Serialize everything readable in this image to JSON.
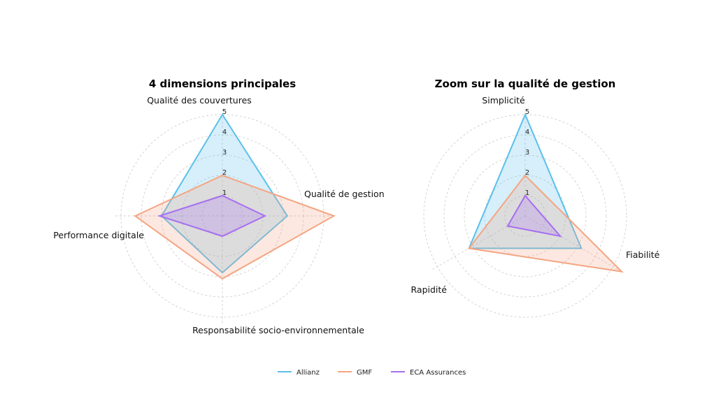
{
  "chart_data": [
    {
      "type": "radar",
      "title": "4 dimensions principales",
      "axes": [
        "Qualité des couvertures",
        "Qualité de gestion",
        "Responsabilité socio-environnementale",
        "Performance digitale"
      ],
      "r_ticks": [
        "1",
        "2",
        "3",
        "4",
        "5"
      ],
      "r_range": [
        0,
        5
      ],
      "series": [
        {
          "name": "Allianz",
          "values": [
            5.0,
            3.2,
            2.8,
            3.0
          ]
        },
        {
          "name": "GMF",
          "values": [
            2.0,
            5.5,
            3.1,
            4.3
          ]
        },
        {
          "name": "ECA Assurances",
          "values": [
            1.0,
            2.1,
            1.0,
            3.1
          ]
        }
      ],
      "grid": true
    },
    {
      "type": "radar",
      "title": "Zoom sur la qualité de gestion",
      "axes": [
        "Simplicité",
        "Fiabilité",
        "Rapidité"
      ],
      "r_ticks": [
        "1",
        "2",
        "3",
        "4",
        "5"
      ],
      "r_range": [
        0,
        5
      ],
      "series": [
        {
          "name": "Allianz",
          "values": [
            5.0,
            3.2,
            3.2
          ]
        },
        {
          "name": "GMF",
          "values": [
            2.0,
            5.5,
            3.2
          ]
        },
        {
          "name": "ECA Assurances",
          "values": [
            1.0,
            2.0,
            1.0
          ]
        }
      ],
      "grid": true
    }
  ],
  "legend": {
    "placement": "bottom",
    "items": [
      "Allianz",
      "GMF",
      "ECA Assurances"
    ]
  },
  "colors": {
    "Allianz": "#5bc0eb",
    "GMF": "#f4a582",
    "ECA Assurances": "#a66ff0",
    "grid": "#cfcfcf"
  }
}
